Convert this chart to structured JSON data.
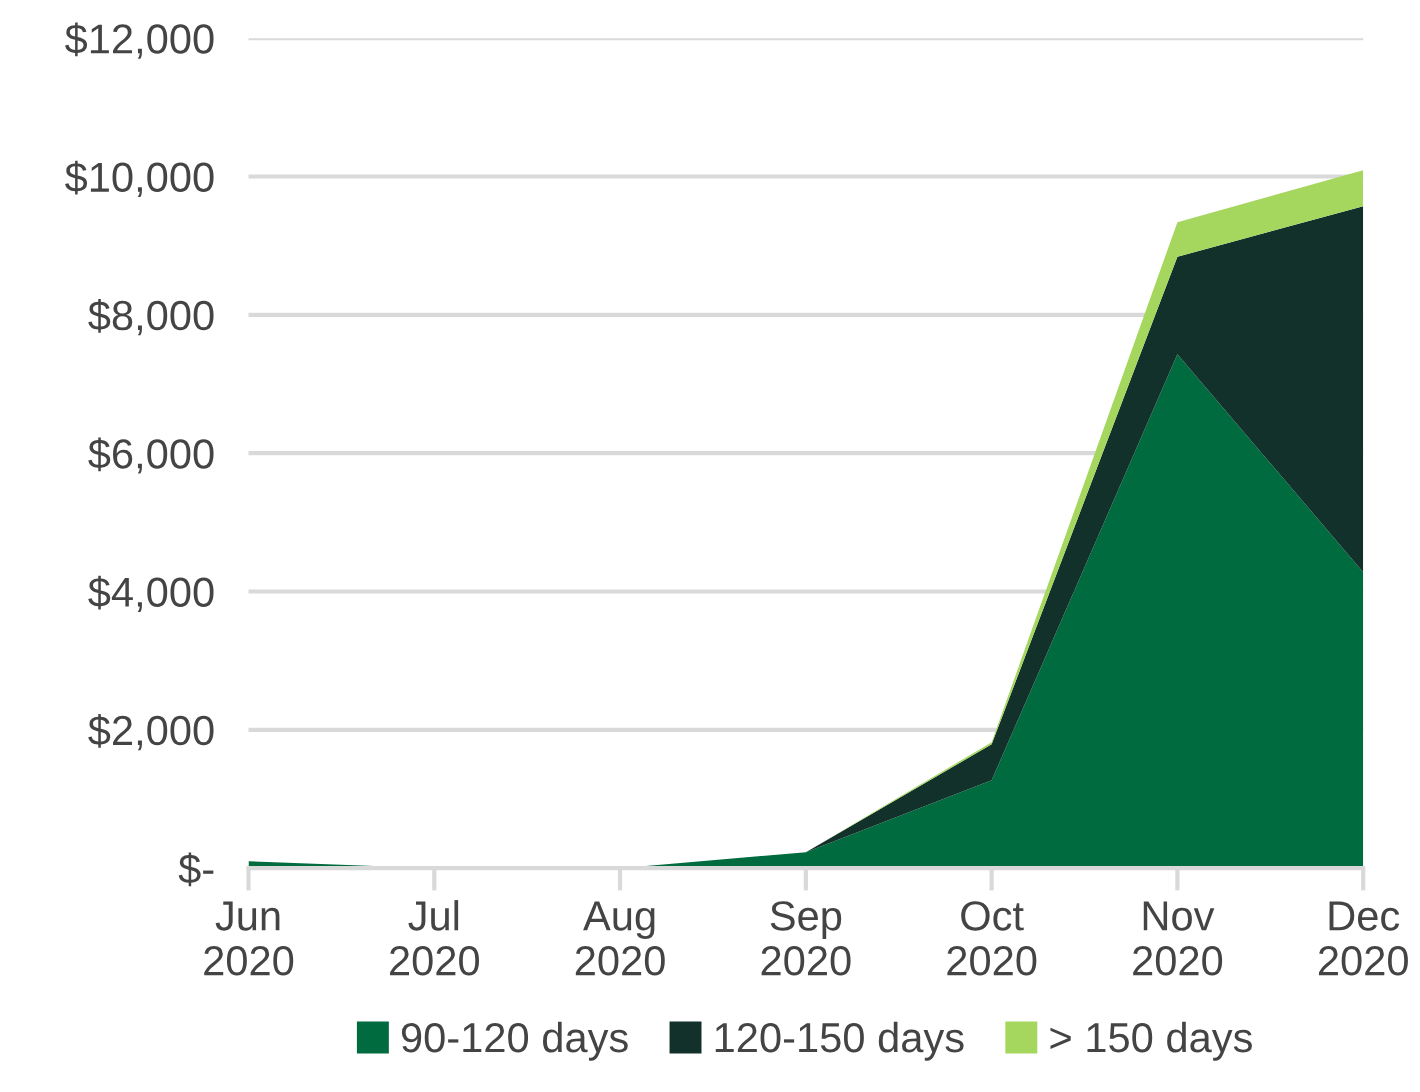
{
  "chart_data": {
    "type": "area",
    "stacked": true,
    "categories": [
      "Jun\n2020",
      "Jul\n2020",
      "Aug\n2020",
      "Sep\n2020",
      "Oct\n2020",
      "Nov\n2020",
      "Dec\n2020"
    ],
    "series": [
      {
        "name": "90-120 days",
        "color": "#006b3f",
        "values": [
          100,
          0,
          0,
          230,
          1270,
          7430,
          4280
        ]
      },
      {
        "name": "120-150 days",
        "color": "#12312b",
        "values": [
          0,
          0,
          0,
          0,
          520,
          1410,
          5290
        ]
      },
      {
        "name": "> 150 days",
        "color": "#a5d65e",
        "values": [
          0,
          0,
          0,
          0,
          30,
          500,
          520
        ]
      }
    ],
    "ylim": [
      0,
      12000
    ],
    "yticks": [
      {
        "value": 0,
        "label": "$-"
      },
      {
        "value": 2000,
        "label": "$2,000"
      },
      {
        "value": 4000,
        "label": "$4,000"
      },
      {
        "value": 6000,
        "label": "$6,000"
      },
      {
        "value": 8000,
        "label": "$8,000"
      },
      {
        "value": 10000,
        "label": "$10,000"
      },
      {
        "value": 12000,
        "label": "$12,000"
      }
    ],
    "grid": "y",
    "legend": "bottom"
  }
}
